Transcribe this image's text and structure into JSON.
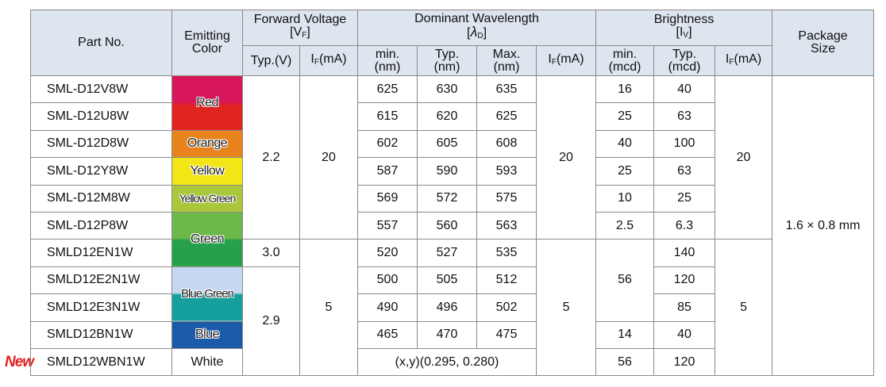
{
  "header": {
    "part_no": "Part No.",
    "emitting_color": "Emitting Color",
    "forward_voltage": "Forward Voltage",
    "vf": [
      "[V",
      "F",
      "]"
    ],
    "typ_v": "Typ.(V)",
    "if_ma": [
      "I",
      "F",
      "(mA)"
    ],
    "dominant_wavelength": "Dominant Wavelength",
    "lambda_d": [
      "[",
      "λ",
      "D",
      "]"
    ],
    "brightness": "Brightness",
    "iv": [
      "[I",
      "V",
      "]"
    ],
    "min": "min.",
    "typ": "Typ.",
    "max": "Max.",
    "nm": "(nm)",
    "mcd": "(mcd)",
    "package_size": "Package Size"
  },
  "colors": [
    "Red",
    "Orange",
    "Yellow",
    "Yellow Green",
    "Green",
    "Blue Green",
    "Blue",
    "White"
  ],
  "rows": [
    {
      "part": "SML-D12V8W",
      "wl": [
        625,
        630,
        635
      ],
      "br_min": 16,
      "br_typ": 40
    },
    {
      "part": "SML-D12U8W",
      "wl": [
        615,
        620,
        625
      ],
      "br_min": 25,
      "br_typ": 63
    },
    {
      "part": "SML-D12D8W",
      "wl": [
        602,
        605,
        608
      ],
      "br_min": 40,
      "br_typ": 100
    },
    {
      "part": "SML-D12Y8W",
      "wl": [
        587,
        590,
        593
      ],
      "br_min": 25,
      "br_typ": 63
    },
    {
      "part": "SML-D12M8W",
      "wl": [
        569,
        572,
        575
      ],
      "br_min": 10,
      "br_typ": 25
    },
    {
      "part": "SML-D12P8W",
      "wl": [
        557,
        560,
        563
      ],
      "br_min": 2.5,
      "br_typ": 6.3
    },
    {
      "part": "SMLD12EN1W",
      "wl": [
        520,
        527,
        535
      ],
      "br_typ": 140
    },
    {
      "part": "SMLD12E2N1W",
      "wl": [
        500,
        505,
        512
      ],
      "br_typ": 120
    },
    {
      "part": "SMLD12E3N1W",
      "wl": [
        490,
        496,
        502
      ],
      "br_typ": 85
    },
    {
      "part": "SMLD12BN1W",
      "wl": [
        465,
        470,
        475
      ],
      "br_min": 14,
      "br_typ": 40
    },
    {
      "part": "SMLD12WBN1W",
      "wl_xy": "(x,y)(0.295, 0.280)",
      "br_min": 56,
      "br_typ": 120
    }
  ],
  "merged": {
    "vf_typ": [
      2.2,
      "3.0",
      2.9
    ],
    "vf_if": [
      20,
      5
    ],
    "wl_if": [
      20,
      5
    ],
    "br_if": [
      20,
      5
    ],
    "br_min": 56,
    "package_size": "1.6 × 0.8 mm"
  },
  "badge": "New"
}
